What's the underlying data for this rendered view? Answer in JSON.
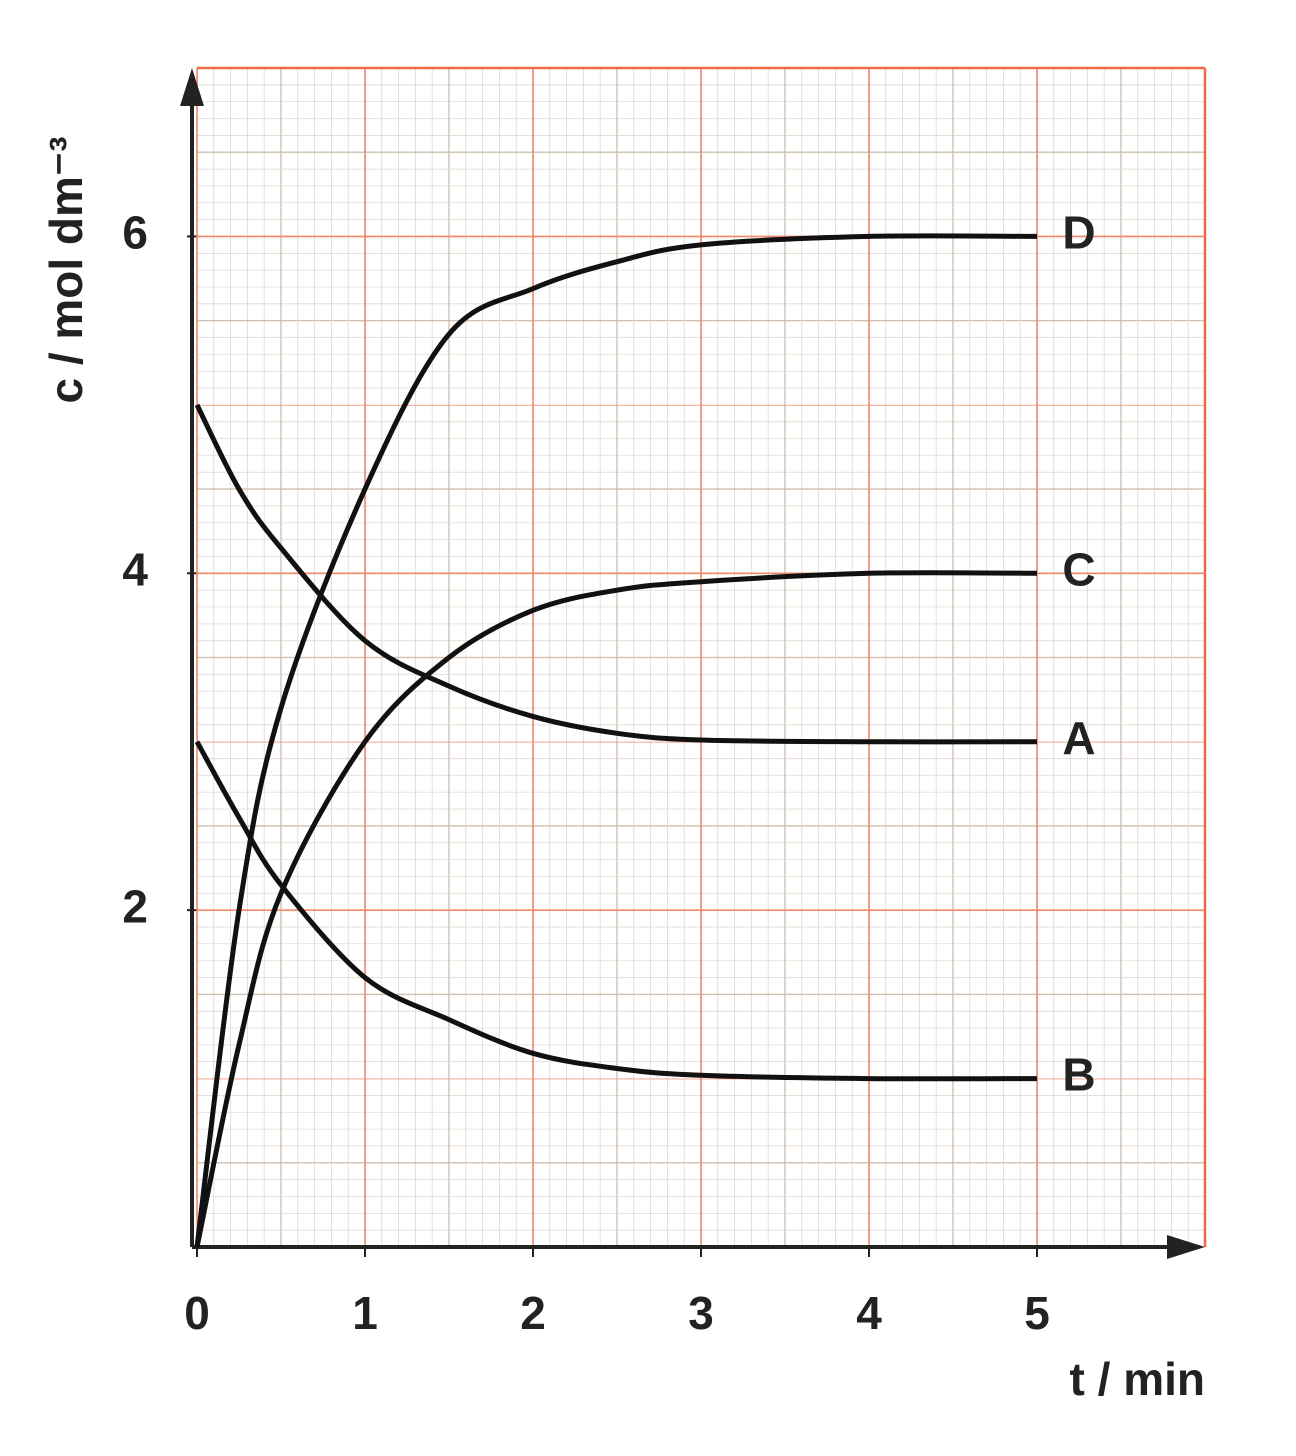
{
  "chart_data": {
    "type": "line",
    "x_label": "t / min",
    "y_label": "c / mol dm⁻³",
    "x": [
      0,
      0.25,
      0.5,
      1,
      1.5,
      2,
      2.5,
      3,
      4,
      5
    ],
    "series": [
      {
        "name": "A",
        "color": "#111111",
        "values": [
          5,
          4.5,
          4.15,
          3.6,
          3.33,
          3.15,
          3.05,
          3.01,
          3,
          3
        ]
      },
      {
        "name": "B",
        "color": "#111111",
        "values": [
          3,
          2.55,
          2.15,
          1.6,
          1.35,
          1.15,
          1.06,
          1.02,
          1,
          1
        ]
      },
      {
        "name": "C",
        "color": "#111111",
        "values": [
          0,
          1.2,
          2.1,
          3.0,
          3.5,
          3.78,
          3.9,
          3.95,
          4,
          4
        ]
      },
      {
        "name": "D",
        "color": "#111111",
        "values": [
          0,
          2.0,
          3.2,
          4.5,
          5.42,
          5.69,
          5.85,
          5.95,
          6,
          6
        ]
      }
    ],
    "xlim": [
      0,
      6
    ],
    "ylim": [
      0,
      7
    ],
    "xticks": [
      0,
      1,
      2,
      3,
      4,
      5
    ],
    "yticks": [
      2,
      4,
      6
    ],
    "grid": true
  }
}
